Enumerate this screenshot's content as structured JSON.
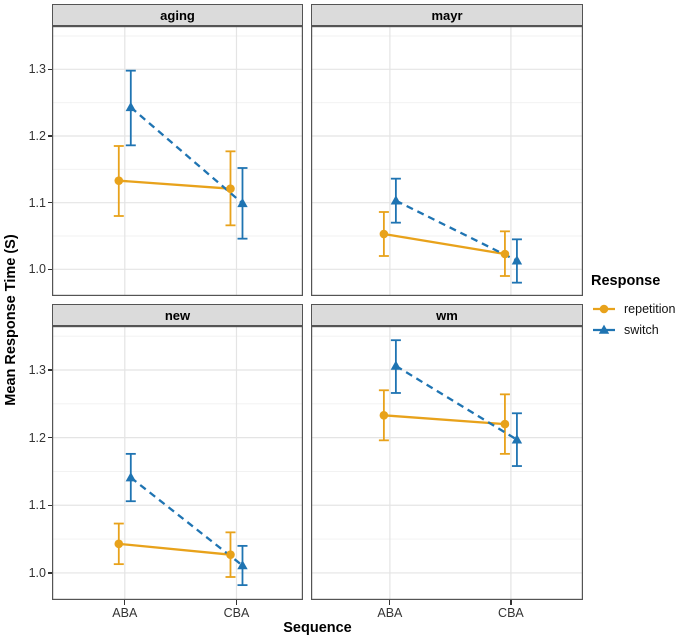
{
  "figure_title": "",
  "chart_data": {
    "type": "line",
    "facets": [
      {
        "label": "aging",
        "series": [
          {
            "name": "repetition",
            "points": [
              {
                "x": "ABA",
                "y": 1.133,
                "ymin": 1.08,
                "ymax": 1.185
              },
              {
                "x": "CBA",
                "y": 1.121,
                "ymin": 1.066,
                "ymax": 1.177
              }
            ]
          },
          {
            "name": "switch",
            "points": [
              {
                "x": "ABA",
                "y": 1.243,
                "ymin": 1.186,
                "ymax": 1.298
              },
              {
                "x": "CBA",
                "y": 1.099,
                "ymin": 1.046,
                "ymax": 1.152
              }
            ]
          }
        ]
      },
      {
        "label": "mayr",
        "series": [
          {
            "name": "repetition",
            "points": [
              {
                "x": "ABA",
                "y": 1.053,
                "ymin": 1.02,
                "ymax": 1.086
              },
              {
                "x": "CBA",
                "y": 1.023,
                "ymin": 0.99,
                "ymax": 1.057
              }
            ]
          },
          {
            "name": "switch",
            "points": [
              {
                "x": "ABA",
                "y": 1.103,
                "ymin": 1.07,
                "ymax": 1.136
              },
              {
                "x": "CBA",
                "y": 1.013,
                "ymin": 0.98,
                "ymax": 1.045
              }
            ]
          }
        ]
      },
      {
        "label": "new",
        "series": [
          {
            "name": "repetition",
            "points": [
              {
                "x": "ABA",
                "y": 1.043,
                "ymin": 1.013,
                "ymax": 1.073
              },
              {
                "x": "CBA",
                "y": 1.027,
                "ymin": 0.994,
                "ymax": 1.06
              }
            ]
          },
          {
            "name": "switch",
            "points": [
              {
                "x": "ABA",
                "y": 1.141,
                "ymin": 1.106,
                "ymax": 1.176
              },
              {
                "x": "CBA",
                "y": 1.011,
                "ymin": 0.982,
                "ymax": 1.04
              }
            ]
          }
        ]
      },
      {
        "label": "wm",
        "series": [
          {
            "name": "repetition",
            "points": [
              {
                "x": "ABA",
                "y": 1.233,
                "ymin": 1.196,
                "ymax": 1.27
              },
              {
                "x": "CBA",
                "y": 1.22,
                "ymin": 1.176,
                "ymax": 1.264
              }
            ]
          },
          {
            "name": "switch",
            "points": [
              {
                "x": "ABA",
                "y": 1.306,
                "ymin": 1.266,
                "ymax": 1.344
              },
              {
                "x": "CBA",
                "y": 1.197,
                "ymin": 1.158,
                "ymax": 1.236
              }
            ]
          }
        ]
      }
    ],
    "categories": [
      "ABA",
      "CBA"
    ],
    "x_label": "Sequence",
    "y_label": "Mean Response Time (S)",
    "y_tick_labels": [
      "1.0",
      "1.1",
      "1.2",
      "1.3"
    ],
    "y_tick_values": [
      1.0,
      1.1,
      1.2,
      1.3
    ],
    "ylim": [
      0.96,
      1.365
    ],
    "grid": "major+minor",
    "legend_position": "right",
    "legend": {
      "title": "Response",
      "items": [
        "repetition",
        "switch"
      ]
    },
    "series_styles": [
      {
        "name": "repetition",
        "color": "#E8A21B",
        "marker": "circle",
        "linetype": "solid"
      },
      {
        "name": "switch",
        "color": "#1F74B2",
        "marker": "triangle",
        "linetype": "dashed"
      }
    ],
    "panel_colors": {
      "strip_fill": "#DBDBDB",
      "panel_border": "#545454",
      "grid_major": "#E4E4E4",
      "grid_minor": "#F0F0F0"
    }
  }
}
